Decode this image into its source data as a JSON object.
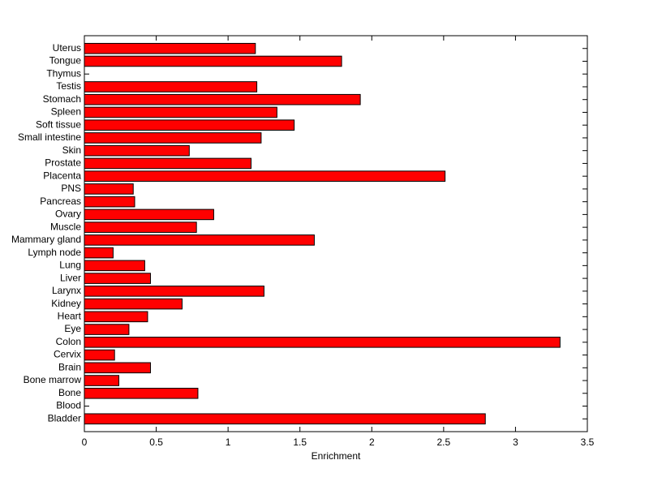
{
  "chart_data": {
    "type": "barh",
    "xlabel": "Enrichment",
    "categories": [
      "Bladder",
      "Blood",
      "Bone",
      "Bone marrow",
      "Brain",
      "Cervix",
      "Colon",
      "Eye",
      "Heart",
      "Kidney",
      "Larynx",
      "Liver",
      "Lung",
      "Lymph node",
      "Mammary gland",
      "Muscle",
      "Ovary",
      "Pancreas",
      "PNS",
      "Placenta",
      "Prostate",
      "Skin",
      "Small intestine",
      "Soft tissue",
      "Spleen",
      "Stomach",
      "Testis",
      "Thymus",
      "Tongue",
      "Uterus"
    ],
    "values": [
      2.79,
      0,
      0.79,
      0.24,
      0.46,
      0.21,
      3.31,
      0.31,
      0.44,
      0.68,
      1.25,
      0.46,
      0.42,
      0.2,
      1.6,
      0.78,
      0.9,
      0.35,
      0.34,
      2.51,
      1.16,
      0.73,
      1.23,
      1.46,
      1.34,
      1.92,
      1.2,
      0,
      1.79,
      1.19
    ],
    "color": "#ff0000",
    "xlim": [
      0,
      3.5
    ],
    "xticks": [
      0,
      0.5,
      1,
      1.5,
      2,
      2.5,
      3,
      3.5
    ]
  }
}
